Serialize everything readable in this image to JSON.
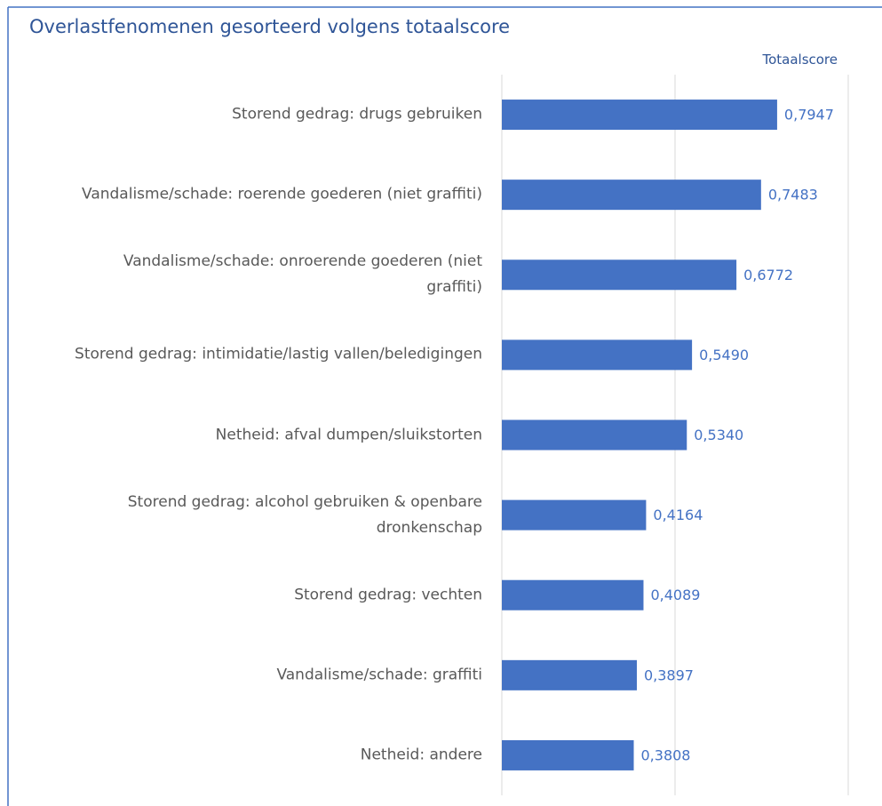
{
  "chart_data": {
    "type": "barh",
    "title": "Overlastfenomenen gesorteerd volgens totaalscore",
    "categories": [
      "Storend gedrag: drugs gebruiken",
      "Vandalisme/schade: roerende goederen (niet graffiti)",
      "Vandalisme/schade: onroerende goederen (niet graffiti)",
      "Storend gedrag: intimidatie/lastig vallen/beledigingen",
      "Netheid: afval dumpen/sluikstorten",
      "Storend gedrag: alcohol gebruiken & openbare dronkenschap",
      "Storend gedrag: vechten",
      "Vandalisme/schade: graffiti",
      "Netheid: andere"
    ],
    "series": [
      {
        "name": "Totaalscore",
        "color": "#4472c4",
        "values": [
          0.7947,
          0.7483,
          0.6772,
          0.549,
          0.534,
          0.4164,
          0.4089,
          0.3897,
          0.3808
        ],
        "value_labels": [
          "0,7947",
          "0,7483",
          "0,6772",
          "0,5490",
          "0,5340",
          "0,4164",
          "0,4089",
          "0,3897",
          "0,3808"
        ]
      }
    ],
    "xlim": [
      0,
      1
    ],
    "xticks": [
      0,
      0.5,
      1
    ],
    "grid": true,
    "legend": "top-right"
  }
}
